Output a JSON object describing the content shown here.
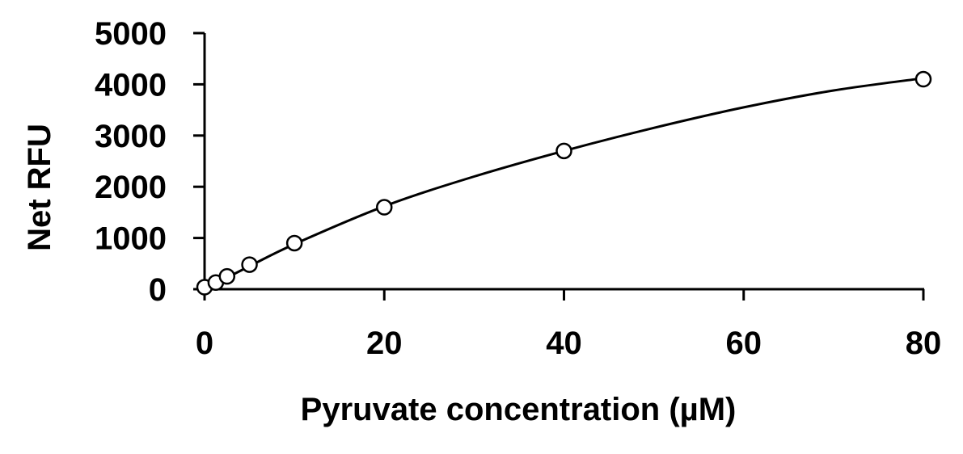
{
  "chart_data": {
    "type": "scatter",
    "title": "",
    "xlabel": "Pyruvate concentration (µM)",
    "ylabel": "Net RFU",
    "xlim": [
      0,
      80
    ],
    "ylim": [
      0,
      5000
    ],
    "x_ticks": [
      0,
      20,
      40,
      60,
      80
    ],
    "y_ticks": [
      0,
      1000,
      2000,
      3000,
      4000,
      5000
    ],
    "x_tick_labels": [
      "0",
      "20",
      "40",
      "60",
      "80"
    ],
    "y_tick_labels": [
      "0",
      "1000",
      "2000",
      "3000",
      "4000",
      "5000"
    ],
    "grid": false,
    "legend": "none",
    "series": [
      {
        "marker": "open-circle",
        "x": [
          0,
          1.25,
          2.5,
          5,
          10,
          20,
          40,
          80
        ],
        "y": [
          40,
          130,
          250,
          480,
          900,
          1600,
          2700,
          4100
        ]
      }
    ],
    "fit_curve": {
      "style": "smooth-line",
      "x": [
        0,
        5,
        10,
        20,
        30,
        40,
        50,
        60,
        70,
        80
      ],
      "y": [
        0,
        450,
        880,
        1620,
        2200,
        2700,
        3150,
        3550,
        3880,
        4120
      ]
    },
    "colors": {
      "axis": "#000000",
      "marker": "#000000",
      "curve": "#000000"
    }
  }
}
